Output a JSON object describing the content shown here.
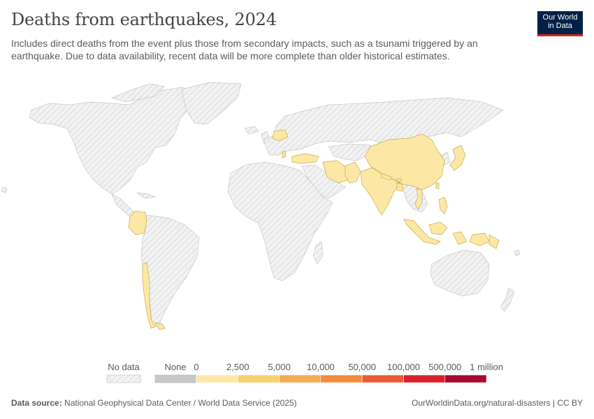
{
  "header": {
    "title": "Deaths from earthquakes, 2024",
    "subtitle": "Includes direct deaths from the event plus those from secondary impacts, such as a tsunami triggered by an earthquake. Due to data availability, recent data will be more complete than older historical estimates."
  },
  "logo": {
    "line1": "Our World",
    "line2": "in Data",
    "bg": "#002147",
    "accent": "#ce261e"
  },
  "map": {
    "no_data_color": "#e8e8e8",
    "border_color": "#c8c8c8",
    "countries_with_data": [
      {
        "name": "Colombia",
        "bin": "0–2,500"
      },
      {
        "name": "Chile",
        "bin": "0–2,500"
      },
      {
        "name": "Argentina",
        "bin": "0–2,500"
      },
      {
        "name": "Poland",
        "bin": "0–2,500"
      },
      {
        "name": "Turkey",
        "bin": "0–2,500"
      },
      {
        "name": "Albania",
        "bin": "0–2,500"
      },
      {
        "name": "Iran",
        "bin": "0–2,500"
      },
      {
        "name": "Pakistan",
        "bin": "0–2,500"
      },
      {
        "name": "India",
        "bin": "0–2,500"
      },
      {
        "name": "Nepal",
        "bin": "0–2,500"
      },
      {
        "name": "Bhutan",
        "bin": "0–2,500"
      },
      {
        "name": "Bangladesh",
        "bin": "0–2,500"
      },
      {
        "name": "China",
        "bin": "0–2,500"
      },
      {
        "name": "Japan",
        "bin": "0–2,500"
      },
      {
        "name": "Vietnam",
        "bin": "0–2,500"
      },
      {
        "name": "Philippines",
        "bin": "0–2,500"
      },
      {
        "name": "Indonesia",
        "bin": "0–2,500"
      },
      {
        "name": "Papua New Guinea",
        "bin": "0–2,500"
      },
      {
        "name": "Taiwan",
        "bin": "0–2,500"
      }
    ]
  },
  "legend": {
    "no_data_label": "No data",
    "none_label": "None",
    "none_color": "#c8c8c8",
    "bins": [
      {
        "from": "0",
        "to": "2,500",
        "color": "#fce8a4"
      },
      {
        "from": "2,500",
        "to": "5,000",
        "color": "#f9d06b"
      },
      {
        "from": "5,000",
        "to": "10,000",
        "color": "#f6ab4e"
      },
      {
        "from": "10,000",
        "to": "50,000",
        "color": "#f28c3c"
      },
      {
        "from": "50,000",
        "to": "100,000",
        "color": "#ec5a34"
      },
      {
        "from": "100,000",
        "to": "500,000",
        "color": "#d8212b"
      },
      {
        "from": "500,000",
        "to": "1 million",
        "color": "#a80a2e"
      }
    ],
    "tick_labels": [
      "0",
      "2,500",
      "5,000",
      "10,000",
      "50,000",
      "100,000",
      "500,000",
      "1 million"
    ]
  },
  "footer": {
    "source_label": "Data source:",
    "source_text": "National Geophysical Data Center / World Data Service (2025)",
    "url_text": "OurWorldinData.org/natural-disasters | CC BY"
  }
}
